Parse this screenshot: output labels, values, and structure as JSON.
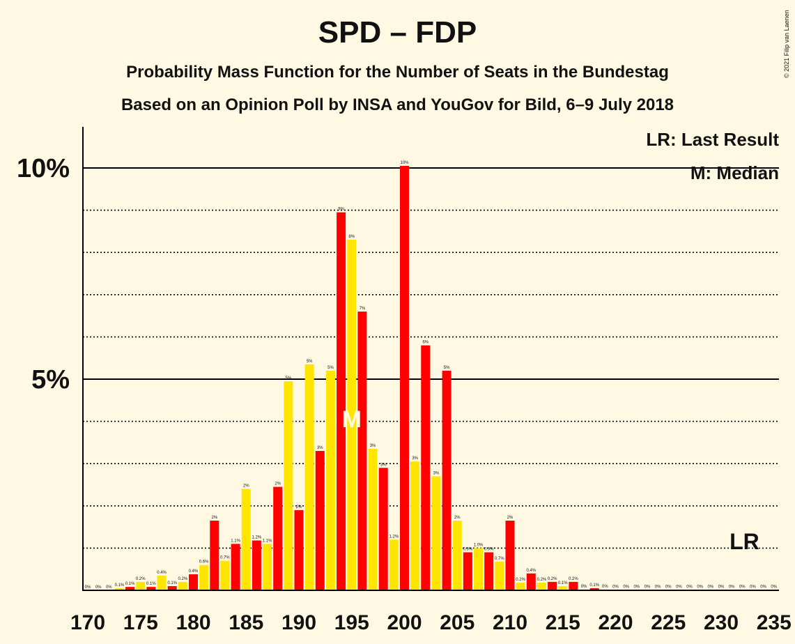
{
  "title": "SPD – FDP",
  "subtitle1": "Probability Mass Function for the Number of Seats in the Bundestag",
  "subtitle2": "Based on an Opinion Poll by INSA and YouGov for Bild, 6–9 July 2018",
  "copyright": "© 2021 Filip van Laenen",
  "legend": {
    "lr": "LR: Last Result",
    "median": "M: Median"
  },
  "markers": {
    "lr_label": "LR",
    "median_label": "M"
  },
  "colors": {
    "red": "#FF0000",
    "yellow": "#FFE500",
    "background": "#FFF9E4"
  },
  "chart_data": {
    "type": "bar",
    "xlabel": "",
    "ylabel": "",
    "x_ticks": [
      170,
      175,
      180,
      185,
      190,
      195,
      200,
      205,
      210,
      215,
      220,
      225,
      230,
      235
    ],
    "y_ticks": [
      "5%",
      "10%"
    ],
    "ylim": [
      0,
      11
    ],
    "grid": "dotted every 1%, solid at 5% and 10%",
    "legend_position": "top-right",
    "median_seat": 195,
    "last_result_seat": 233,
    "seats": [
      170,
      171,
      172,
      173,
      174,
      175,
      176,
      177,
      178,
      179,
      180,
      181,
      182,
      183,
      184,
      185,
      186,
      187,
      188,
      189,
      190,
      191,
      192,
      193,
      194,
      195,
      196,
      197,
      198,
      199,
      200,
      201,
      202,
      203,
      204,
      205,
      206,
      207,
      208,
      209,
      210,
      211,
      212,
      213,
      214,
      215,
      216,
      217,
      218,
      219,
      220,
      221,
      222,
      223,
      224,
      225,
      226,
      227,
      228,
      229,
      230,
      231,
      232,
      233,
      234,
      235
    ],
    "values": [
      0,
      0,
      0,
      0.05,
      0.08,
      0.2,
      0.08,
      0.35,
      0.1,
      0.2,
      0.38,
      0.6,
      1.65,
      0.7,
      1.1,
      2.4,
      1.18,
      1.1,
      2.45,
      4.95,
      1.9,
      5.35,
      3.3,
      5.2,
      8.95,
      8.3,
      6.6,
      3.35,
      2.9,
      1.2,
      10.05,
      3.05,
      5.8,
      2.7,
      5.2,
      1.65,
      0.9,
      1.0,
      0.9,
      0.68,
      1.65,
      0.18,
      0.4,
      0.18,
      0.2,
      0.1,
      0.2,
      0.02,
      0.05,
      0.02,
      0.01,
      0.01,
      0.01,
      0.01,
      0.01,
      0.01,
      0.01,
      0.01,
      0.01,
      0.01,
      0.01,
      0.01,
      0.01,
      0.01,
      0.01,
      0.01
    ],
    "labels": [
      "0%",
      "0%",
      "0%",
      "0.1%",
      "0.1%",
      "0.2%",
      "0.1%",
      "0.4%",
      "0.1%",
      "0.2%",
      "0.4%",
      "0.6%",
      "2%",
      "0.7%",
      "1.1%",
      "2%",
      "1.2%",
      "1.1%",
      "2%",
      "5%",
      "2%",
      "5%",
      "3%",
      "5%",
      "9%",
      "8%",
      "7%",
      "3%",
      "3%",
      "1.2%",
      "10%",
      "3%",
      "6%",
      "3%",
      "5%",
      "2%",
      "0.9%",
      "1.0%",
      "0.9%",
      "0.7%",
      "2%",
      "0.2%",
      "0.4%",
      "0.2%",
      "0.2%",
      "0.1%",
      "0.2%",
      "0%",
      "0.1%",
      "0%",
      "0%",
      "0%",
      "0%",
      "0%",
      "0%",
      "0%",
      "0%",
      "0%",
      "0%",
      "0%",
      "0%",
      "0%",
      "0%",
      "0%",
      "0%",
      "0%"
    ],
    "bar_colors": [
      "red",
      "yellow"
    ]
  }
}
